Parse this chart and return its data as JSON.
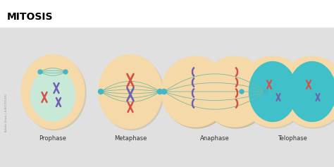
{
  "title": "MITOSIS",
  "bg_color": "#e0e0e0",
  "white_top_color": "#ffffff",
  "stages": [
    "Prophase",
    "Metaphase",
    "Anaphase",
    "Telophase"
  ],
  "cell_color": "#f5d9a8",
  "cell_shadow": "#c8b080",
  "nucleus_color": "#c8e8d8",
  "spindle_color": "#7ab8a0",
  "chr_red": "#d4504a",
  "chr_purple": "#7060b0",
  "teal_color": "#40b8c8",
  "teal_nucleus": "#40c0c8",
  "label_fontsize": 6,
  "title_fontsize": 10
}
